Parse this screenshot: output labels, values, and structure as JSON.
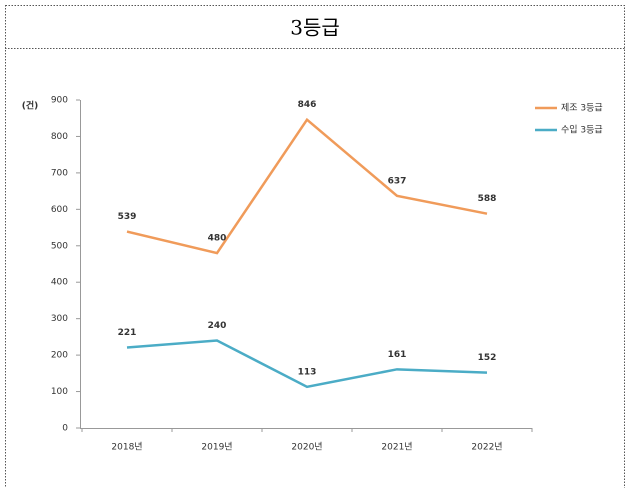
{
  "chart_data": {
    "type": "line",
    "title": "3등급",
    "y_label": "(건)",
    "categories": [
      "2018년",
      "2019년",
      "2020년",
      "2021년",
      "2022년"
    ],
    "series": [
      {
        "name": "제조 3등급",
        "color": "#f09b5a",
        "values": [
          539,
          480,
          846,
          637,
          588
        ]
      },
      {
        "name": "수입 3등급",
        "color": "#4bacc6",
        "values": [
          221,
          240,
          113,
          161,
          152
        ]
      }
    ],
    "ylim": [
      0,
      900
    ],
    "yticks": [
      0,
      100,
      200,
      300,
      400,
      500,
      600,
      700,
      800,
      900
    ],
    "legend": "top-right"
  }
}
